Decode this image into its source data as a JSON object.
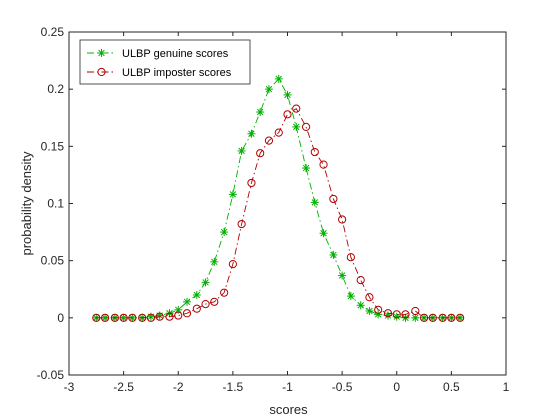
{
  "chart_data": {
    "type": "line",
    "title": "",
    "xlabel": "scores",
    "ylabel": "probability density",
    "xlim": [
      -3,
      1
    ],
    "ylim": [
      -0.05,
      0.25
    ],
    "xticks": [
      -3,
      -2.5,
      -2,
      -1.5,
      -1,
      -0.5,
      0,
      0.5,
      1
    ],
    "xtick_labels": [
      "-3",
      "-2.5",
      "-2",
      "-1.5",
      "-1",
      "-0.5",
      "0",
      "0.5",
      "1"
    ],
    "yticks": [
      -0.05,
      0,
      0.05,
      0.1,
      0.15,
      0.2,
      0.25
    ],
    "ytick_labels": [
      "-0.05",
      "0",
      "0.05",
      "0.1",
      "0.15",
      "0.2",
      "0.25"
    ],
    "grid": false,
    "legend_position": "top-left",
    "series": [
      {
        "name": "ULBP genuine scores",
        "color": "#00b000",
        "marker": "asterisk",
        "line_style": "dash-dot",
        "x": [
          -2.75,
          -2.67,
          -2.58,
          -2.5,
          -2.42,
          -2.33,
          -2.25,
          -2.17,
          -2.08,
          -2.0,
          -1.92,
          -1.83,
          -1.75,
          -1.67,
          -1.58,
          -1.5,
          -1.42,
          -1.33,
          -1.25,
          -1.17,
          -1.08,
          -1.0,
          -0.92,
          -0.83,
          -0.75,
          -0.67,
          -0.58,
          -0.5,
          -0.42,
          -0.33,
          -0.25,
          -0.17,
          -0.08,
          0.0,
          0.08,
          0.17,
          0.25,
          0.33,
          0.42,
          0.5,
          0.58
        ],
        "y": [
          0.0,
          0.0,
          0.0,
          0.0,
          0.0,
          0.0,
          0.001,
          0.002,
          0.004,
          0.007,
          0.014,
          0.02,
          0.031,
          0.049,
          0.075,
          0.108,
          0.146,
          0.161,
          0.18,
          0.2,
          0.209,
          0.195,
          0.167,
          0.131,
          0.101,
          0.074,
          0.055,
          0.037,
          0.019,
          0.011,
          0.006,
          0.003,
          0.002,
          0.001,
          0.0,
          0.0,
          0.0,
          0.0,
          0.0,
          0.0,
          0.0
        ]
      },
      {
        "name": "ULBP imposter scores",
        "color": "#b00000",
        "marker": "circle",
        "line_style": "dash-dot",
        "x": [
          -2.75,
          -2.67,
          -2.58,
          -2.5,
          -2.42,
          -2.33,
          -2.25,
          -2.17,
          -2.08,
          -2.0,
          -1.92,
          -1.83,
          -1.75,
          -1.67,
          -1.58,
          -1.5,
          -1.42,
          -1.33,
          -1.25,
          -1.17,
          -1.08,
          -1.0,
          -0.92,
          -0.83,
          -0.75,
          -0.67,
          -0.58,
          -0.5,
          -0.42,
          -0.33,
          -0.25,
          -0.17,
          -0.08,
          0.0,
          0.08,
          0.17,
          0.25,
          0.33,
          0.42,
          0.5,
          0.58
        ],
        "y": [
          0.0,
          0.0,
          0.0,
          0.0,
          0.0,
          0.0,
          0.0,
          0.001,
          0.001,
          0.002,
          0.004,
          0.008,
          0.012,
          0.014,
          0.022,
          0.047,
          0.082,
          0.118,
          0.144,
          0.155,
          0.162,
          0.178,
          0.183,
          0.167,
          0.145,
          0.134,
          0.104,
          0.086,
          0.053,
          0.033,
          0.018,
          0.007,
          0.004,
          0.003,
          0.003,
          0.006,
          0.0,
          0.0,
          0.0,
          0.0,
          0.0
        ]
      }
    ]
  }
}
